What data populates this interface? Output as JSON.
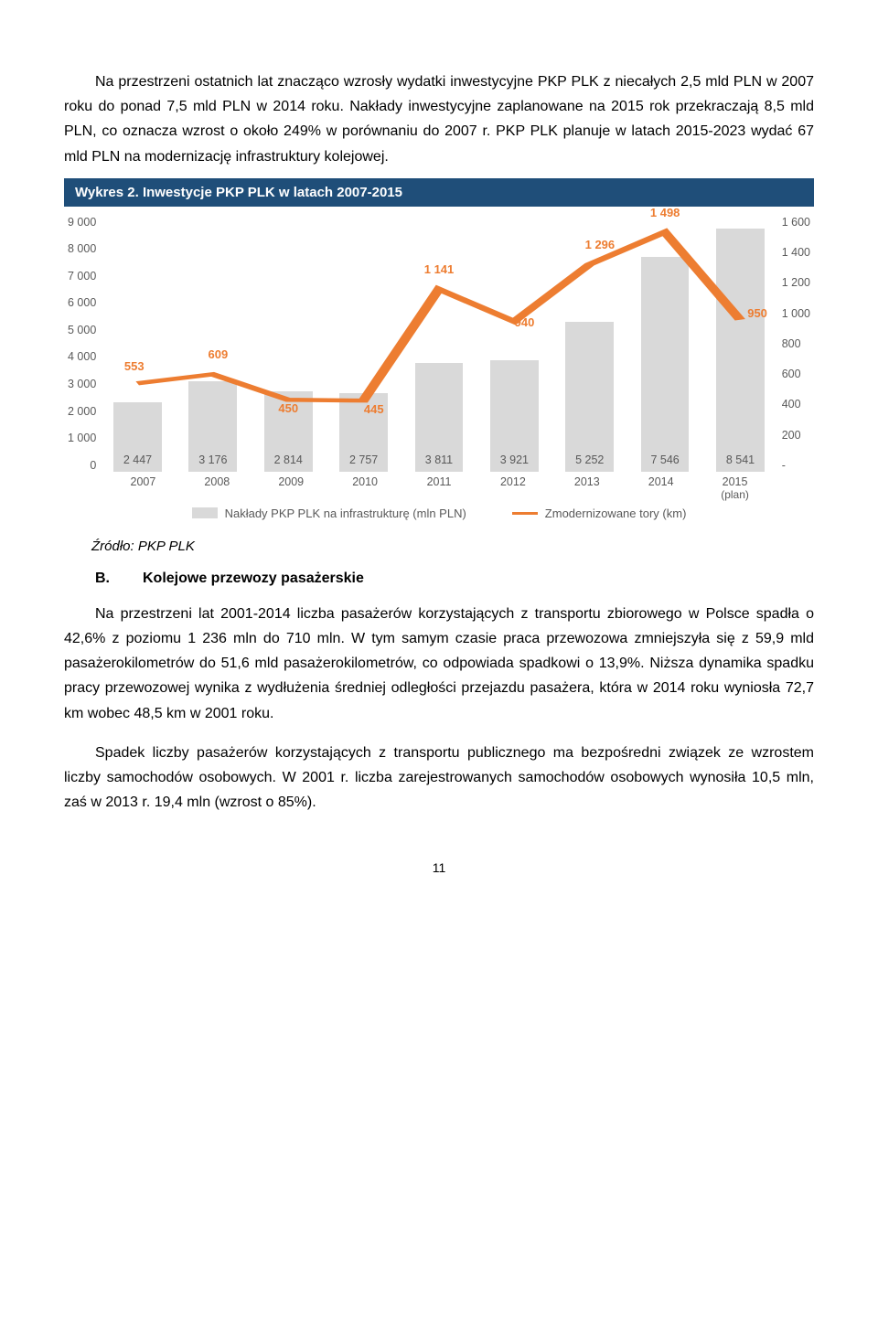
{
  "para1": "Na przestrzeni ostatnich lat znacząco wzrosły wydatki inwestycyjne PKP PLK z niecałych 2,5 mld PLN w 2007 roku do ponad 7,5 mld PLN w 2014 roku. Nakłady inwestycyjne zaplanowane na 2015 rok przekraczają 8,5 mld PLN, co oznacza wzrost o około 249% w porównaniu do 2007 r. PKP PLK planuje w latach 2015-2023 wydać 67 mld PLN na modernizację infrastruktury kolejowej.",
  "chart": {
    "title": "Wykres 2. Inwestycje PKP PLK w latach 2007-2015",
    "y_left": {
      "min": 0,
      "max": 9000,
      "step": 1000
    },
    "y_right": {
      "ticks": [
        "1 600",
        "1 400",
        "1 200",
        "1 000",
        "800",
        "600",
        "400",
        "200",
        "-"
      ]
    },
    "series_bar": {
      "color": "#d9d9d9",
      "values": [
        2447,
        3176,
        2814,
        2757,
        3811,
        3921,
        5252,
        7546,
        8541
      ],
      "labels": [
        "2 447",
        "3 176",
        "2 814",
        "2 757",
        "3 811",
        "3 921",
        "5 252",
        "7 546",
        "8 541"
      ]
    },
    "series_line": {
      "color": "#ed7d31",
      "values": [
        553,
        609,
        450,
        445,
        1141,
        940,
        1296,
        1498,
        950
      ],
      "labels": [
        "553",
        "609",
        "450",
        "445",
        "1 141",
        "940",
        "1 296",
        "1 498",
        "950"
      ],
      "y_max": 1600
    },
    "x_labels": [
      "2007",
      "2008",
      "2009",
      "2010",
      "2011",
      "2012",
      "2013",
      "2014",
      "2015"
    ],
    "x_sub": [
      "",
      "",
      "",
      "",
      "",
      "",
      "",
      "",
      "(plan)"
    ],
    "legend_bar": "Nakłady PKP PLK na infrastrukturę (mln PLN)",
    "legend_line": "Zmodernizowane tory (km)"
  },
  "source": "Źródło: PKP PLK",
  "section_letter": "B.",
  "section_title": "Kolejowe przewozy pasażerskie",
  "para2": "Na przestrzeni lat 2001-2014 liczba pasażerów korzystających z transportu zbiorowego w Polsce spadła o 42,6% z poziomu 1 236 mln do 710 mln. W tym samym czasie praca przewozowa zmniejszyła się z 59,9 mld pasażerokilometrów do 51,6 mld pasażerokilometrów, co odpowiada spadkowi o 13,9%. Niższa dynamika spadku pracy przewozowej wynika z wydłużenia średniej odległości przejazdu pasażera, która w 2014 roku wyniosła 72,7 km wobec 48,5 km w 2001 roku.",
  "para3": "Spadek liczby pasażerów korzystających z transportu publicznego ma bezpośredni związek ze wzrostem liczby samochodów osobowych. W 2001 r. liczba zarejestrowanych samochodów osobowych wynosiła 10,5 mln, zaś w 2013 r. 19,4 mln (wzrost o 85%).",
  "page_number": "11"
}
